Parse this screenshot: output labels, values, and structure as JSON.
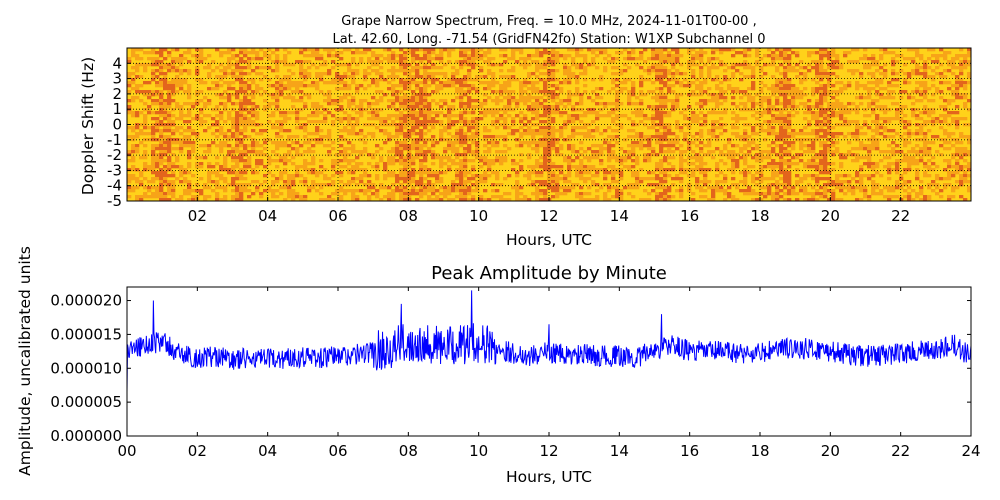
{
  "chart_data": [
    {
      "type": "heatmap",
      "title_line1": "Grape Narrow Spectrum, Freq. = 10.0 MHz, 2024-11-01T00-00 ,",
      "title_line2": "Lat.  42.60, Long. -71.54 (GridFN42fo) Station: W1XP Subchannel 0",
      "xlabel": "Hours, UTC",
      "ylabel": "Doppler Shift (Hz)",
      "xlim": [
        0,
        24
      ],
      "ylim": [
        -5,
        5
      ],
      "x_ticks": [
        "02",
        "04",
        "06",
        "08",
        "10",
        "12",
        "14",
        "16",
        "18",
        "20",
        "22"
      ],
      "x_tick_values": [
        2,
        4,
        6,
        8,
        10,
        12,
        14,
        16,
        18,
        20,
        22
      ],
      "y_ticks": [
        "4",
        "3",
        "2",
        "1",
        "0",
        "-1",
        "-2",
        "-3",
        "-4",
        "-5"
      ],
      "y_tick_values": [
        4,
        3,
        2,
        1,
        0,
        -1,
        -2,
        -3,
        -4,
        -5
      ],
      "colors": {
        "low": "#ffd21a",
        "mid": "#f7a418",
        "high": "#e3651c"
      },
      "bright_bands_hours": [
        1.0,
        3.2,
        7.9,
        8.4,
        9.6,
        12.0,
        15.2,
        18.7,
        19.8
      ]
    },
    {
      "type": "line",
      "title": "Peak Amplitude by Minute",
      "xlabel": "Hours, UTC",
      "ylabel": "Amplitude, uncalibrated units",
      "xlim": [
        0,
        24
      ],
      "ylim": [
        0,
        2.2e-05
      ],
      "x_ticks": [
        "00",
        "02",
        "04",
        "06",
        "08",
        "10",
        "12",
        "14",
        "16",
        "18",
        "20",
        "22",
        "24"
      ],
      "x_tick_values": [
        0,
        2,
        4,
        6,
        8,
        10,
        12,
        14,
        16,
        18,
        20,
        22,
        24
      ],
      "y_ticks": [
        "0.000000",
        "0.000005",
        "0.000010",
        "0.000015",
        "0.000020"
      ],
      "y_tick_values": [
        0,
        5e-06,
        1e-05,
        1.5e-05,
        2e-05
      ],
      "line_color": "#0000ff",
      "series": [
        {
          "x": [
            0,
            0.5,
            1,
            1.5,
            2,
            2.5,
            3,
            3.5,
            4,
            4.5,
            5,
            5.5,
            6,
            6.5,
            7,
            7.5,
            8,
            8.5,
            9,
            9.5,
            10,
            10.5,
            11,
            11.5,
            12,
            12.5,
            13,
            13.5,
            14,
            14.5,
            15,
            15.5,
            16,
            16.5,
            17,
            17.5,
            18,
            18.5,
            19,
            19.5,
            20,
            20.5,
            21,
            21.5,
            22,
            22.5,
            23,
            23.5,
            24
          ],
          "y": [
            1.25e-05,
            1.35e-05,
            1.4e-05,
            1.2e-05,
            1.15e-05,
            1.18e-05,
            1.12e-05,
            1.15e-05,
            1.13e-05,
            1.15e-05,
            1.18e-05,
            1.15e-05,
            1.18e-05,
            1.2e-05,
            1.25e-05,
            1.3e-05,
            1.38e-05,
            1.4e-05,
            1.3e-05,
            1.35e-05,
            1.38e-05,
            1.3e-05,
            1.22e-05,
            1.18e-05,
            1.25e-05,
            1.18e-05,
            1.2e-05,
            1.18e-05,
            1.18e-05,
            1.15e-05,
            1.28e-05,
            1.35e-05,
            1.25e-05,
            1.25e-05,
            1.25e-05,
            1.22e-05,
            1.22e-05,
            1.28e-05,
            1.3e-05,
            1.28e-05,
            1.25e-05,
            1.2e-05,
            1.18e-05,
            1.2e-05,
            1.22e-05,
            1.25e-05,
            1.25e-05,
            1.35e-05,
            1.18e-05
          ]
        }
      ],
      "notable_peaks": [
        {
          "x": 0.75,
          "y": 2e-05
        },
        {
          "x": 7.8,
          "y": 1.95e-05
        },
        {
          "x": 9.8,
          "y": 2.15e-05
        },
        {
          "x": 12.0,
          "y": 1.65e-05
        },
        {
          "x": 15.2,
          "y": 1.8e-05
        }
      ]
    }
  ]
}
